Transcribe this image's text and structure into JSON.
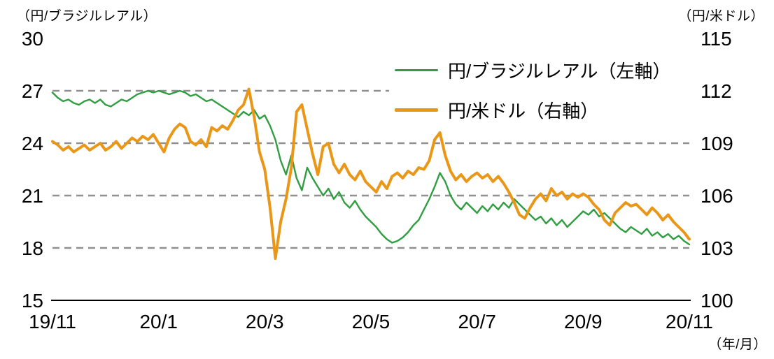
{
  "chart_data": {
    "type": "line",
    "title": "",
    "x_axis": {
      "labels": [
        "19/11",
        "20/1",
        "20/3",
        "20/5",
        "20/7",
        "20/9",
        "20/11"
      ],
      "unit_label": "（年/月）"
    },
    "left_axis": {
      "unit_label": "（円/ブラジルレアル）",
      "min": 15,
      "max": 30,
      "ticks": [
        30,
        27,
        24,
        21,
        18,
        15
      ]
    },
    "right_axis": {
      "unit_label": "（円/米ドル）",
      "min": 100,
      "max": 115,
      "ticks": [
        115,
        112,
        109,
        106,
        103,
        100
      ]
    },
    "gridlines": {
      "left_values": [
        27,
        24,
        21,
        18
      ],
      "style": "dashed",
      "color": "#909090"
    },
    "legend_position": "top-right-inside",
    "series": [
      {
        "name": "円/ブラジルレアル（左軸）",
        "axis": "left",
        "color": "#2f9e41",
        "width": 2.4,
        "values": [
          26.9,
          26.6,
          26.4,
          26.5,
          26.3,
          26.2,
          26.4,
          26.5,
          26.3,
          26.5,
          26.2,
          26.1,
          26.3,
          26.5,
          26.4,
          26.6,
          26.8,
          26.9,
          27.0,
          26.9,
          27.0,
          26.9,
          26.8,
          26.9,
          27.0,
          26.9,
          26.7,
          26.8,
          26.6,
          26.4,
          26.5,
          26.3,
          26.1,
          25.9,
          25.7,
          25.5,
          25.8,
          25.6,
          25.9,
          25.4,
          25.6,
          25.0,
          24.2,
          23.0,
          22.2,
          23.3,
          22.0,
          21.3,
          22.6,
          22.0,
          21.5,
          21.0,
          21.4,
          20.8,
          21.2,
          20.6,
          20.3,
          20.7,
          20.2,
          19.8,
          19.5,
          19.2,
          18.8,
          18.5,
          18.3,
          18.4,
          18.6,
          18.9,
          19.3,
          19.6,
          20.2,
          20.8,
          21.5,
          22.3,
          21.8,
          21.0,
          20.5,
          20.2,
          20.6,
          20.3,
          20.0,
          20.4,
          20.1,
          20.5,
          20.2,
          20.6,
          20.3,
          20.8,
          20.5,
          20.2,
          19.9,
          19.6,
          19.8,
          19.4,
          19.7,
          19.3,
          19.6,
          19.2,
          19.5,
          19.8,
          20.1,
          19.9,
          20.2,
          19.8,
          20.0,
          19.7,
          19.4,
          19.1,
          18.9,
          19.2,
          19.0,
          18.8,
          19.1,
          18.7,
          18.9,
          18.6,
          18.8,
          18.5,
          18.7,
          18.4,
          18.2
        ]
      },
      {
        "name": "円/米ドル（右軸）",
        "axis": "right",
        "color": "#ea9617",
        "width": 4,
        "values": [
          109.1,
          108.9,
          108.6,
          108.8,
          108.5,
          108.7,
          108.9,
          108.6,
          108.8,
          109.0,
          108.6,
          108.8,
          109.1,
          108.7,
          109.0,
          109.3,
          109.1,
          109.4,
          109.2,
          109.5,
          109.0,
          108.5,
          109.3,
          109.8,
          110.1,
          109.9,
          109.1,
          108.9,
          109.2,
          108.8,
          109.9,
          109.7,
          110.0,
          109.8,
          110.3,
          110.9,
          111.2,
          112.1,
          110.5,
          108.5,
          107.5,
          105.3,
          102.4,
          104.5,
          105.8,
          107.6,
          110.8,
          111.2,
          109.8,
          108.4,
          107.2,
          108.8,
          109.0,
          107.8,
          107.3,
          107.8,
          107.2,
          106.9,
          107.4,
          106.8,
          106.5,
          106.2,
          106.8,
          106.4,
          107.1,
          107.3,
          107.0,
          107.4,
          107.2,
          107.6,
          107.5,
          108.0,
          109.2,
          109.6,
          108.3,
          107.4,
          106.9,
          107.2,
          106.8,
          107.1,
          107.3,
          107.0,
          107.2,
          106.8,
          107.1,
          106.7,
          106.2,
          105.6,
          104.9,
          104.7,
          105.3,
          105.8,
          106.1,
          105.7,
          106.4,
          106.0,
          106.2,
          105.8,
          106.1,
          105.9,
          106.1,
          105.9,
          105.5,
          105.2,
          104.6,
          104.3,
          105.0,
          105.3,
          105.6,
          105.4,
          105.5,
          105.2,
          104.9,
          105.3,
          105.0,
          104.6,
          104.9,
          104.5,
          104.2,
          103.9,
          103.5
        ]
      }
    ]
  }
}
